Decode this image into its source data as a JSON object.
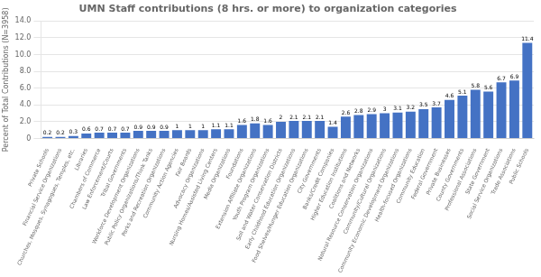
{
  "chart_data": {
    "type": "bar",
    "title": "UMN Staff contributions (8 hrs. or more) to organization categories",
    "ylabel": "Percent of Total Contributions (N=3958)",
    "categories": [
      "Private Schools",
      "Financial Service Organizations",
      "Churches, Mosques, Synagogues, Temples, etc.",
      "Libraries",
      "Chambers of Commerce",
      "Law Enforcement/Courts",
      "Tribal Governments",
      "Workforce Development Organizations",
      "Public Policy Organizations/Think Tanks",
      "Parks and Recreation Organizations",
      "Community Action Agencies",
      "Fair Boards",
      "Advocacy Organizations",
      "Nursing Homes/Assisted Living Centers",
      "Media Organizations",
      "Foundations",
      "Extension Affiliate Organizations",
      "Youth Program Organizations",
      "Soil and Water Conservation Districts",
      "Early Childhood Education Organizations",
      "Food Shelves/Hunger Education Organizations",
      "City Governments",
      "Banks/Credit Companies",
      "Higher Education Institutions",
      "Coalitions and Networks",
      "Natural Resource Conservation Organizations",
      "Community/Cultural Organizations",
      "Community Economic Development Organizations",
      "Health-focused Organizations",
      "Community Education",
      "Federal Government",
      "Private Businesses",
      "County Governments",
      "Professional Associations",
      "State Government",
      "Social Service Organizations",
      "Trade Associations",
      "Public Schools"
    ],
    "values": [
      0.2,
      0.2,
      0.3,
      0.6,
      0.7,
      0.7,
      0.7,
      0.9,
      0.9,
      0.9,
      1.0,
      1.0,
      1.0,
      1.1,
      1.1,
      1.6,
      1.8,
      1.6,
      2.0,
      2.1,
      2.1,
      2.1,
      1.4,
      2.6,
      2.8,
      2.9,
      3.0,
      3.1,
      3.2,
      3.5,
      3.7,
      4.6,
      5.1,
      5.8,
      5.6,
      6.7,
      6.9,
      11.4
    ],
    "color": "#4472C4",
    "ylim": [
      0,
      14.0
    ],
    "yticks": [
      0,
      {
        "value": 2.0,
        "label": "2.0"
      },
      {
        "value": 4.0,
        "label": "4.0"
      },
      {
        "value": 6.0,
        "label": "6.0"
      },
      {
        "value": 8.0,
        "label": "8.0"
      },
      {
        "value": 10.0,
        "label": "10.0"
      },
      {
        "value": 12.0,
        "label": "12.0"
      },
      {
        "value": 14.0,
        "label": "14.0"
      }
    ],
    "grid": true,
    "data_labels": true
  }
}
